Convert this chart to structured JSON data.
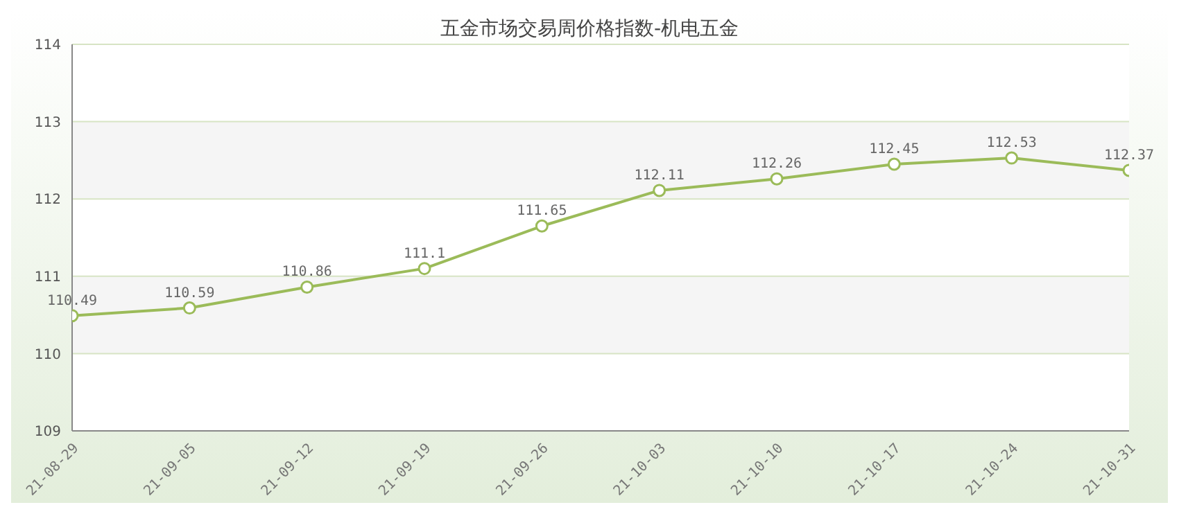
{
  "chart_data": {
    "type": "line",
    "title": "五金市场交易周价格指数-机电五金",
    "categories": [
      "21-08-29",
      "21-09-05",
      "21-09-12",
      "21-09-19",
      "21-09-26",
      "21-10-03",
      "21-10-10",
      "21-10-17",
      "21-10-24",
      "21-10-31"
    ],
    "series": [
      {
        "color": "#9bbb59",
        "values": [
          110.49,
          110.59,
          110.86,
          111.1,
          111.65,
          112.11,
          112.26,
          112.45,
          112.53,
          112.37
        ]
      }
    ],
    "ylim": [
      109,
      114
    ],
    "yticks": [
      109,
      110,
      111,
      112,
      113,
      114
    ],
    "grid": "y",
    "marker": "circle",
    "data_labels": true
  }
}
